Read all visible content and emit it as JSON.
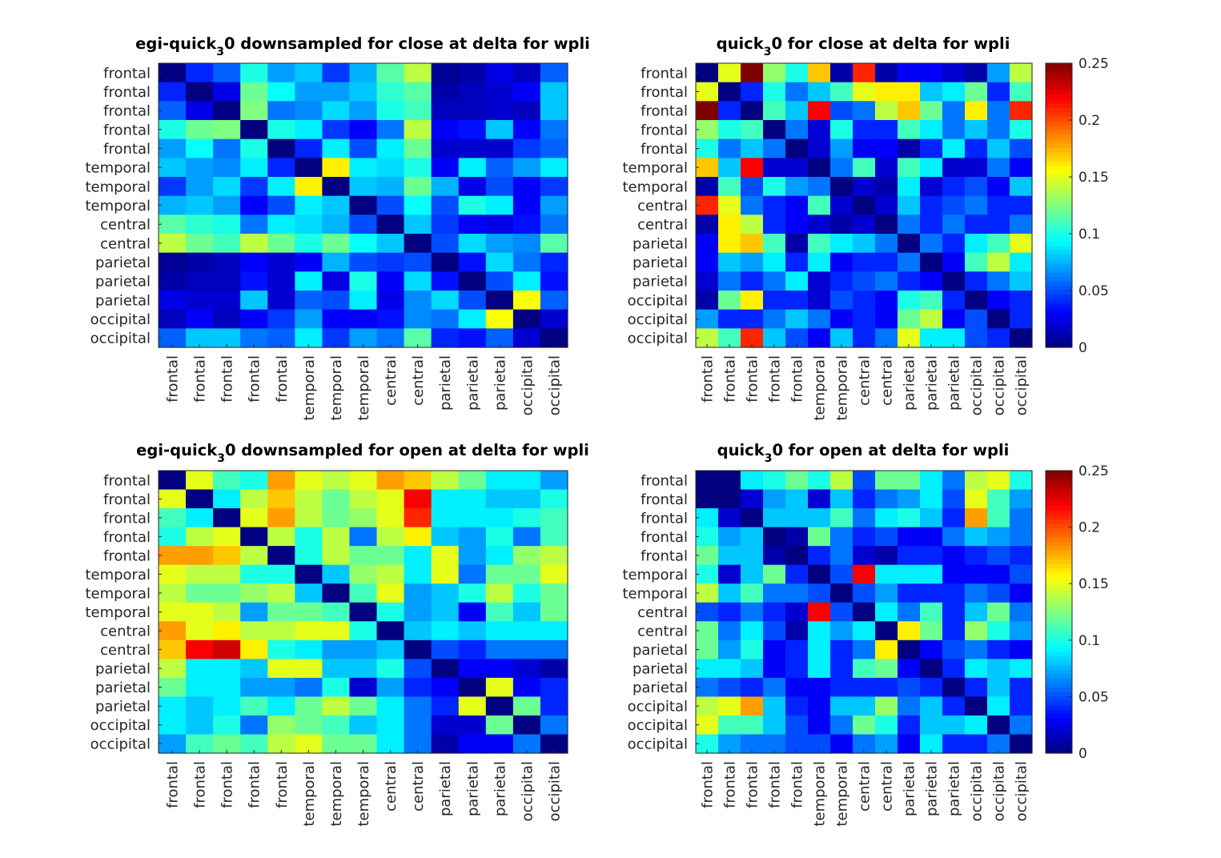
{
  "figure": {
    "background": "#ffffff"
  },
  "colormap": {
    "name": "jet",
    "min": 0,
    "max": 0.25
  },
  "chart_data": [
    {
      "type": "heatmap",
      "title": "egi-quick_30 downsampled for close at delta for wpli",
      "title_parts": [
        "egi-quick",
        "3",
        "0 downsampled for close at delta for wpli"
      ],
      "row_labels": [
        "frontal",
        "frontal",
        "frontal",
        "frontal",
        "frontal",
        "temporal",
        "temporal",
        "temporal",
        "central",
        "central",
        "parietal",
        "parietal",
        "parietal",
        "occipital",
        "occipital"
      ],
      "col_labels": [
        "frontal",
        "frontal",
        "frontal",
        "frontal",
        "frontal",
        "temporal",
        "temporal",
        "temporal",
        "central",
        "central",
        "parietal",
        "parietal",
        "parietal",
        "occipital",
        "occipital"
      ],
      "clim": [
        0,
        0.25
      ],
      "colorbar": false,
      "values": [
        [
          0.0,
          0.04,
          0.055,
          0.1,
          0.07,
          0.08,
          0.045,
          0.075,
          0.115,
          0.14,
          0.005,
          0.01,
          0.025,
          0.015,
          0.055
        ],
        [
          0.04,
          0.0,
          0.025,
          0.12,
          0.095,
          0.07,
          0.07,
          0.08,
          0.105,
          0.115,
          0.01,
          0.015,
          0.02,
          0.03,
          0.08
        ],
        [
          0.055,
          0.025,
          0.0,
          0.125,
          0.06,
          0.065,
          0.085,
          0.07,
          0.1,
          0.11,
          0.015,
          0.015,
          0.02,
          0.015,
          0.08
        ],
        [
          0.1,
          0.12,
          0.125,
          0.0,
          0.1,
          0.09,
          0.045,
          0.03,
          0.06,
          0.14,
          0.03,
          0.035,
          0.08,
          0.03,
          0.06
        ],
        [
          0.07,
          0.095,
          0.06,
          0.1,
          0.0,
          0.04,
          0.09,
          0.05,
          0.09,
          0.12,
          0.02,
          0.02,
          0.02,
          0.045,
          0.055
        ],
        [
          0.08,
          0.07,
          0.065,
          0.09,
          0.04,
          0.0,
          0.16,
          0.09,
          0.085,
          0.1,
          0.03,
          0.09,
          0.055,
          0.07,
          0.09
        ],
        [
          0.045,
          0.07,
          0.085,
          0.045,
          0.09,
          0.16,
          0.0,
          0.08,
          0.075,
          0.12,
          0.075,
          0.025,
          0.05,
          0.03,
          0.045
        ],
        [
          0.075,
          0.08,
          0.07,
          0.03,
          0.05,
          0.09,
          0.08,
          0.0,
          0.05,
          0.095,
          0.05,
          0.1,
          0.09,
          0.03,
          0.07
        ],
        [
          0.115,
          0.105,
          0.1,
          0.06,
          0.09,
          0.085,
          0.075,
          0.05,
          0.0,
          0.08,
          0.045,
          0.03,
          0.025,
          0.035,
          0.06
        ],
        [
          0.14,
          0.12,
          0.11,
          0.14,
          0.12,
          0.1,
          0.12,
          0.095,
          0.08,
          0.0,
          0.05,
          0.085,
          0.07,
          0.065,
          0.115
        ],
        [
          0.005,
          0.01,
          0.015,
          0.03,
          0.02,
          0.03,
          0.075,
          0.05,
          0.045,
          0.05,
          0.0,
          0.035,
          0.085,
          0.06,
          0.04
        ],
        [
          0.01,
          0.015,
          0.015,
          0.035,
          0.02,
          0.09,
          0.025,
          0.1,
          0.03,
          0.085,
          0.035,
          0.0,
          0.05,
          0.09,
          0.035
        ],
        [
          0.025,
          0.02,
          0.02,
          0.08,
          0.02,
          0.055,
          0.05,
          0.09,
          0.025,
          0.065,
          0.085,
          0.05,
          0.0,
          0.155,
          0.055
        ],
        [
          0.015,
          0.03,
          0.015,
          0.03,
          0.045,
          0.07,
          0.03,
          0.03,
          0.035,
          0.065,
          0.06,
          0.09,
          0.155,
          0.0,
          0.02
        ],
        [
          0.055,
          0.08,
          0.08,
          0.06,
          0.055,
          0.09,
          0.045,
          0.07,
          0.06,
          0.115,
          0.04,
          0.035,
          0.055,
          0.02,
          0.0
        ]
      ]
    },
    {
      "type": "heatmap",
      "title": "quick_30 for close at delta for wpli",
      "title_parts": [
        "quick",
        "3",
        "0 for close at delta for wpli"
      ],
      "row_labels": [
        "frontal",
        "frontal",
        "frontal",
        "frontal",
        "frontal",
        "temporal",
        "temporal",
        "central",
        "central",
        "parietal",
        "parietal",
        "parietal",
        "occipital",
        "occipital",
        "occipital"
      ],
      "col_labels": [
        "frontal",
        "frontal",
        "frontal",
        "frontal",
        "frontal",
        "temporal",
        "temporal",
        "central",
        "central",
        "parietal",
        "parietal",
        "parietal",
        "occipital",
        "occipital",
        "occipital"
      ],
      "clim": [
        0,
        0.25
      ],
      "colorbar": true,
      "colorbar_ticks": [
        "0",
        "0.05",
        "0.1",
        "0.15",
        "0.2",
        "0.25"
      ],
      "values": [
        [
          0.0,
          0.15,
          0.25,
          0.13,
          0.1,
          0.17,
          0.01,
          0.21,
          0.01,
          0.03,
          0.03,
          0.02,
          0.01,
          0.07,
          0.14
        ],
        [
          0.15,
          0.0,
          0.04,
          0.1,
          0.06,
          0.08,
          0.11,
          0.15,
          0.16,
          0.16,
          0.08,
          0.09,
          0.12,
          0.04,
          0.11
        ],
        [
          0.25,
          0.04,
          0.0,
          0.11,
          0.08,
          0.22,
          0.05,
          0.06,
          0.14,
          0.17,
          0.12,
          0.06,
          0.16,
          0.06,
          0.21
        ],
        [
          0.13,
          0.1,
          0.11,
          0.0,
          0.06,
          0.02,
          0.1,
          0.04,
          0.04,
          0.11,
          0.09,
          0.06,
          0.08,
          0.06,
          0.1
        ],
        [
          0.1,
          0.06,
          0.08,
          0.06,
          0.0,
          0.02,
          0.07,
          0.03,
          0.03,
          0.01,
          0.04,
          0.09,
          0.04,
          0.08,
          0.05
        ],
        [
          0.17,
          0.08,
          0.22,
          0.02,
          0.02,
          0.0,
          0.06,
          0.11,
          0.02,
          0.11,
          0.09,
          0.02,
          0.02,
          0.06,
          0.03
        ],
        [
          0.01,
          0.11,
          0.05,
          0.1,
          0.07,
          0.06,
          0.0,
          0.02,
          0.01,
          0.09,
          0.02,
          0.04,
          0.05,
          0.03,
          0.08
        ],
        [
          0.21,
          0.15,
          0.06,
          0.04,
          0.03,
          0.11,
          0.02,
          0.0,
          0.02,
          0.08,
          0.04,
          0.05,
          0.06,
          0.04,
          0.04
        ],
        [
          0.01,
          0.16,
          0.14,
          0.04,
          0.03,
          0.02,
          0.01,
          0.02,
          0.0,
          0.06,
          0.04,
          0.06,
          0.04,
          0.04,
          0.06
        ],
        [
          0.03,
          0.16,
          0.17,
          0.11,
          0.01,
          0.11,
          0.09,
          0.08,
          0.06,
          0.0,
          0.06,
          0.04,
          0.09,
          0.11,
          0.15
        ],
        [
          0.03,
          0.08,
          0.07,
          0.09,
          0.04,
          0.09,
          0.03,
          0.04,
          0.04,
          0.06,
          0.0,
          0.03,
          0.11,
          0.14,
          0.09
        ],
        [
          0.02,
          0.06,
          0.04,
          0.06,
          0.09,
          0.02,
          0.04,
          0.05,
          0.06,
          0.04,
          0.03,
          0.0,
          0.04,
          0.06,
          0.08
        ],
        [
          0.01,
          0.12,
          0.16,
          0.04,
          0.04,
          0.02,
          0.05,
          0.04,
          0.03,
          0.1,
          0.11,
          0.04,
          0.0,
          0.03,
          0.04
        ],
        [
          0.07,
          0.04,
          0.04,
          0.06,
          0.08,
          0.06,
          0.03,
          0.04,
          0.03,
          0.12,
          0.14,
          0.03,
          0.05,
          0.0,
          0.04
        ],
        [
          0.14,
          0.11,
          0.21,
          0.08,
          0.05,
          0.03,
          0.08,
          0.04,
          0.06,
          0.15,
          0.09,
          0.09,
          0.05,
          0.04,
          0.0
        ]
      ]
    },
    {
      "type": "heatmap",
      "title": "egi-quick_30 downsampled for open at delta for wpli",
      "title_parts": [
        "egi-quick",
        "3",
        "0 downsampled for open at delta for wpli"
      ],
      "row_labels": [
        "frontal",
        "frontal",
        "frontal",
        "frontal",
        "frontal",
        "temporal",
        "temporal",
        "temporal",
        "central",
        "central",
        "parietal",
        "parietal",
        "parietal",
        "occipital",
        "occipital"
      ],
      "col_labels": [
        "frontal",
        "frontal",
        "frontal",
        "frontal",
        "frontal",
        "temporal",
        "temporal",
        "temporal",
        "central",
        "central",
        "parietal",
        "parietal",
        "parietal",
        "occipital",
        "occipital"
      ],
      "clim": [
        0,
        0.25
      ],
      "colorbar": false,
      "values": [
        [
          0.0,
          0.15,
          0.11,
          0.1,
          0.18,
          0.15,
          0.14,
          0.15,
          0.18,
          0.17,
          0.14,
          0.12,
          0.09,
          0.09,
          0.07
        ],
        [
          0.15,
          0.0,
          0.09,
          0.14,
          0.17,
          0.14,
          0.12,
          0.14,
          0.15,
          0.22,
          0.09,
          0.09,
          0.08,
          0.08,
          0.1
        ],
        [
          0.11,
          0.09,
          0.0,
          0.15,
          0.18,
          0.14,
          0.12,
          0.13,
          0.15,
          0.21,
          0.09,
          0.09,
          0.09,
          0.1,
          0.11
        ],
        [
          0.1,
          0.14,
          0.15,
          0.0,
          0.14,
          0.1,
          0.14,
          0.06,
          0.14,
          0.16,
          0.08,
          0.07,
          0.1,
          0.06,
          0.11
        ],
        [
          0.18,
          0.18,
          0.17,
          0.14,
          0.0,
          0.1,
          0.14,
          0.12,
          0.12,
          0.09,
          0.15,
          0.07,
          0.09,
          0.13,
          0.14
        ],
        [
          0.15,
          0.14,
          0.14,
          0.1,
          0.1,
          0.0,
          0.08,
          0.13,
          0.14,
          0.09,
          0.15,
          0.06,
          0.12,
          0.12,
          0.15
        ],
        [
          0.14,
          0.12,
          0.12,
          0.13,
          0.14,
          0.08,
          0.0,
          0.11,
          0.15,
          0.07,
          0.08,
          0.1,
          0.14,
          0.1,
          0.12
        ],
        [
          0.15,
          0.15,
          0.14,
          0.07,
          0.12,
          0.12,
          0.11,
          0.0,
          0.1,
          0.07,
          0.08,
          0.03,
          0.11,
          0.08,
          0.12
        ],
        [
          0.18,
          0.15,
          0.16,
          0.14,
          0.14,
          0.15,
          0.15,
          0.1,
          0.0,
          0.08,
          0.09,
          0.08,
          0.09,
          0.09,
          0.09
        ],
        [
          0.17,
          0.22,
          0.23,
          0.16,
          0.1,
          0.09,
          0.07,
          0.07,
          0.08,
          0.0,
          0.05,
          0.04,
          0.06,
          0.06,
          0.06
        ],
        [
          0.14,
          0.09,
          0.09,
          0.08,
          0.15,
          0.15,
          0.08,
          0.08,
          0.1,
          0.05,
          0.0,
          0.03,
          0.03,
          0.02,
          0.01
        ],
        [
          0.12,
          0.09,
          0.09,
          0.07,
          0.07,
          0.06,
          0.1,
          0.02,
          0.07,
          0.04,
          0.03,
          0.0,
          0.15,
          0.03,
          0.04
        ],
        [
          0.09,
          0.08,
          0.09,
          0.11,
          0.09,
          0.12,
          0.14,
          0.12,
          0.09,
          0.06,
          0.04,
          0.15,
          0.0,
          0.12,
          0.04
        ],
        [
          0.09,
          0.08,
          0.1,
          0.06,
          0.13,
          0.12,
          0.11,
          0.08,
          0.09,
          0.06,
          0.02,
          0.02,
          0.12,
          0.0,
          0.06
        ],
        [
          0.07,
          0.11,
          0.12,
          0.11,
          0.14,
          0.15,
          0.12,
          0.12,
          0.09,
          0.06,
          0.01,
          0.03,
          0.03,
          0.06,
          0.0
        ]
      ]
    },
    {
      "type": "heatmap",
      "title": "quick_30 for open at delta for wpli",
      "title_parts": [
        "quick",
        "3",
        "0 for open at delta for wpli"
      ],
      "row_labels": [
        "frontal",
        "frontal",
        "frontal",
        "frontal",
        "frontal",
        "temporal",
        "temporal",
        "central",
        "central",
        "parietal",
        "parietal",
        "parietal",
        "occipital",
        "occipital",
        "occipital"
      ],
      "col_labels": [
        "frontal",
        "frontal",
        "frontal",
        "frontal",
        "frontal",
        "temporal",
        "temporal",
        "central",
        "central",
        "parietal",
        "parietal",
        "parietal",
        "occipital",
        "occipital",
        "occipital"
      ],
      "clim": [
        0,
        0.25
      ],
      "colorbar": true,
      "colorbar_ticks": [
        "0",
        "0.05",
        "0.1",
        "0.15",
        "0.2",
        "0.25"
      ],
      "values": [
        [
          0.0,
          0.0,
          0.09,
          0.1,
          0.12,
          0.1,
          0.14,
          0.05,
          0.12,
          0.12,
          0.09,
          0.06,
          0.14,
          0.15,
          0.1
        ],
        [
          0.0,
          0.0,
          0.02,
          0.07,
          0.08,
          0.02,
          0.08,
          0.04,
          0.06,
          0.07,
          0.09,
          0.05,
          0.15,
          0.11,
          0.07
        ],
        [
          0.09,
          0.02,
          0.0,
          0.08,
          0.08,
          0.08,
          0.11,
          0.06,
          0.09,
          0.1,
          0.08,
          0.04,
          0.18,
          0.11,
          0.06
        ],
        [
          0.1,
          0.07,
          0.08,
          0.0,
          0.01,
          0.12,
          0.06,
          0.04,
          0.05,
          0.03,
          0.03,
          0.06,
          0.08,
          0.07,
          0.06
        ],
        [
          0.12,
          0.08,
          0.08,
          0.01,
          0.0,
          0.04,
          0.06,
          0.02,
          0.01,
          0.04,
          0.04,
          0.03,
          0.04,
          0.05,
          0.04
        ],
        [
          0.1,
          0.02,
          0.08,
          0.12,
          0.04,
          0.0,
          0.05,
          0.22,
          0.09,
          0.09,
          0.09,
          0.03,
          0.03,
          0.03,
          0.05
        ],
        [
          0.14,
          0.08,
          0.11,
          0.06,
          0.06,
          0.05,
          0.0,
          0.05,
          0.07,
          0.04,
          0.04,
          0.04,
          0.06,
          0.05,
          0.03
        ],
        [
          0.05,
          0.04,
          0.06,
          0.04,
          0.02,
          0.22,
          0.05,
          0.0,
          0.09,
          0.06,
          0.11,
          0.04,
          0.08,
          0.12,
          0.06
        ],
        [
          0.12,
          0.06,
          0.09,
          0.05,
          0.01,
          0.09,
          0.07,
          0.09,
          0.0,
          0.16,
          0.12,
          0.04,
          0.13,
          0.1,
          0.07
        ],
        [
          0.12,
          0.07,
          0.1,
          0.03,
          0.04,
          0.09,
          0.04,
          0.06,
          0.16,
          0.0,
          0.03,
          0.05,
          0.06,
          0.04,
          0.03
        ],
        [
          0.09,
          0.09,
          0.08,
          0.03,
          0.04,
          0.09,
          0.04,
          0.11,
          0.12,
          0.03,
          0.0,
          0.04,
          0.09,
          0.08,
          0.09
        ],
        [
          0.06,
          0.05,
          0.04,
          0.06,
          0.03,
          0.03,
          0.04,
          0.04,
          0.04,
          0.05,
          0.04,
          0.0,
          0.04,
          0.08,
          0.04
        ],
        [
          0.14,
          0.15,
          0.18,
          0.08,
          0.04,
          0.03,
          0.08,
          0.08,
          0.13,
          0.06,
          0.08,
          0.04,
          0.0,
          0.09,
          0.04
        ],
        [
          0.15,
          0.11,
          0.11,
          0.08,
          0.05,
          0.03,
          0.06,
          0.12,
          0.1,
          0.04,
          0.08,
          0.08,
          0.09,
          0.0,
          0.06
        ],
        [
          0.1,
          0.07,
          0.06,
          0.06,
          0.05,
          0.05,
          0.03,
          0.06,
          0.07,
          0.03,
          0.09,
          0.04,
          0.04,
          0.06,
          0.0
        ]
      ]
    }
  ]
}
